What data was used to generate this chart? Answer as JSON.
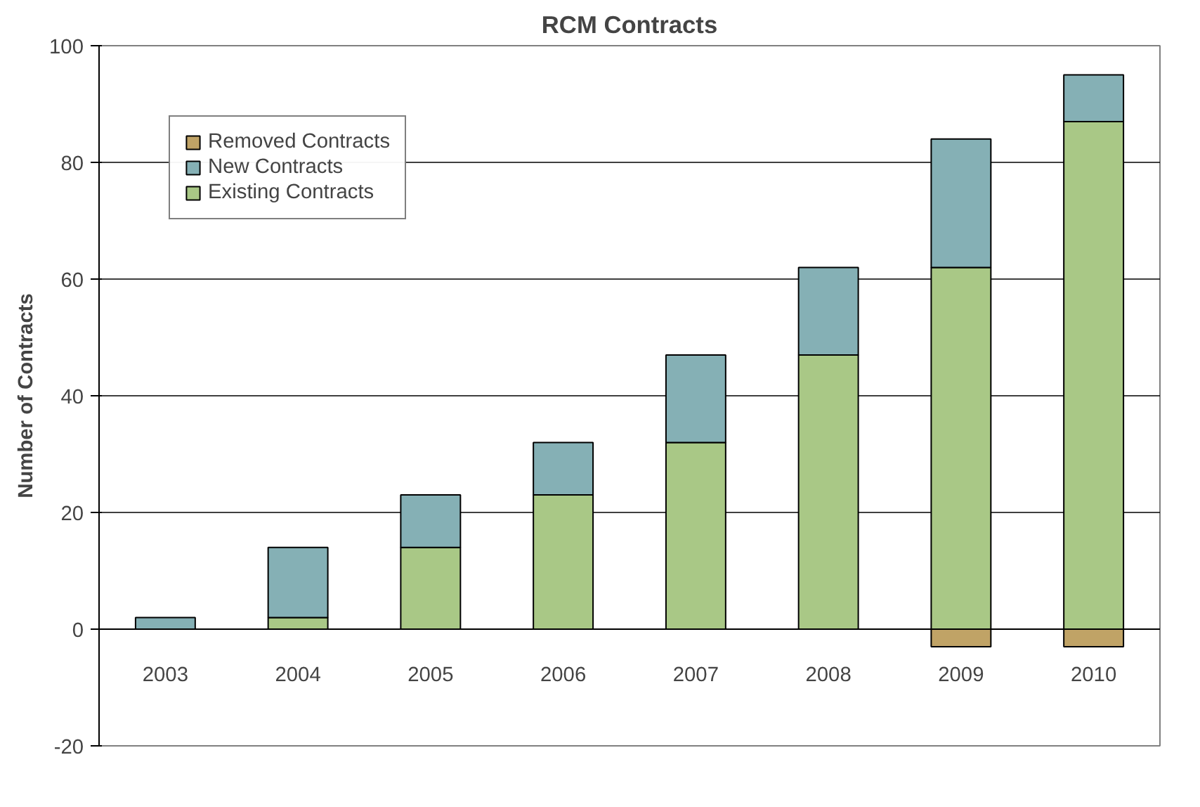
{
  "chart_data": {
    "type": "bar",
    "title": "RCM Contracts",
    "ylabel": "Number of Contracts",
    "categories": [
      "2003",
      "2004",
      "2005",
      "2006",
      "2007",
      "2008",
      "2009",
      "2010"
    ],
    "stacked": true,
    "series": [
      {
        "name": "Existing Contracts",
        "color": "#a9c886",
        "values": [
          0,
          2,
          14,
          23,
          32,
          47,
          62,
          87
        ]
      },
      {
        "name": "New Contracts",
        "color": "#85b0b5",
        "values": [
          2,
          12,
          9,
          9,
          15,
          15,
          22,
          8
        ]
      },
      {
        "name": "Removed Contracts",
        "color": "#c0a366",
        "values": [
          0,
          0,
          0,
          0,
          0,
          0,
          -3,
          -3
        ]
      }
    ],
    "ylim": [
      -20,
      100
    ],
    "yticks": [
      -20,
      0,
      20,
      40,
      60,
      80,
      100
    ],
    "grid": "y",
    "legend": "top left"
  }
}
